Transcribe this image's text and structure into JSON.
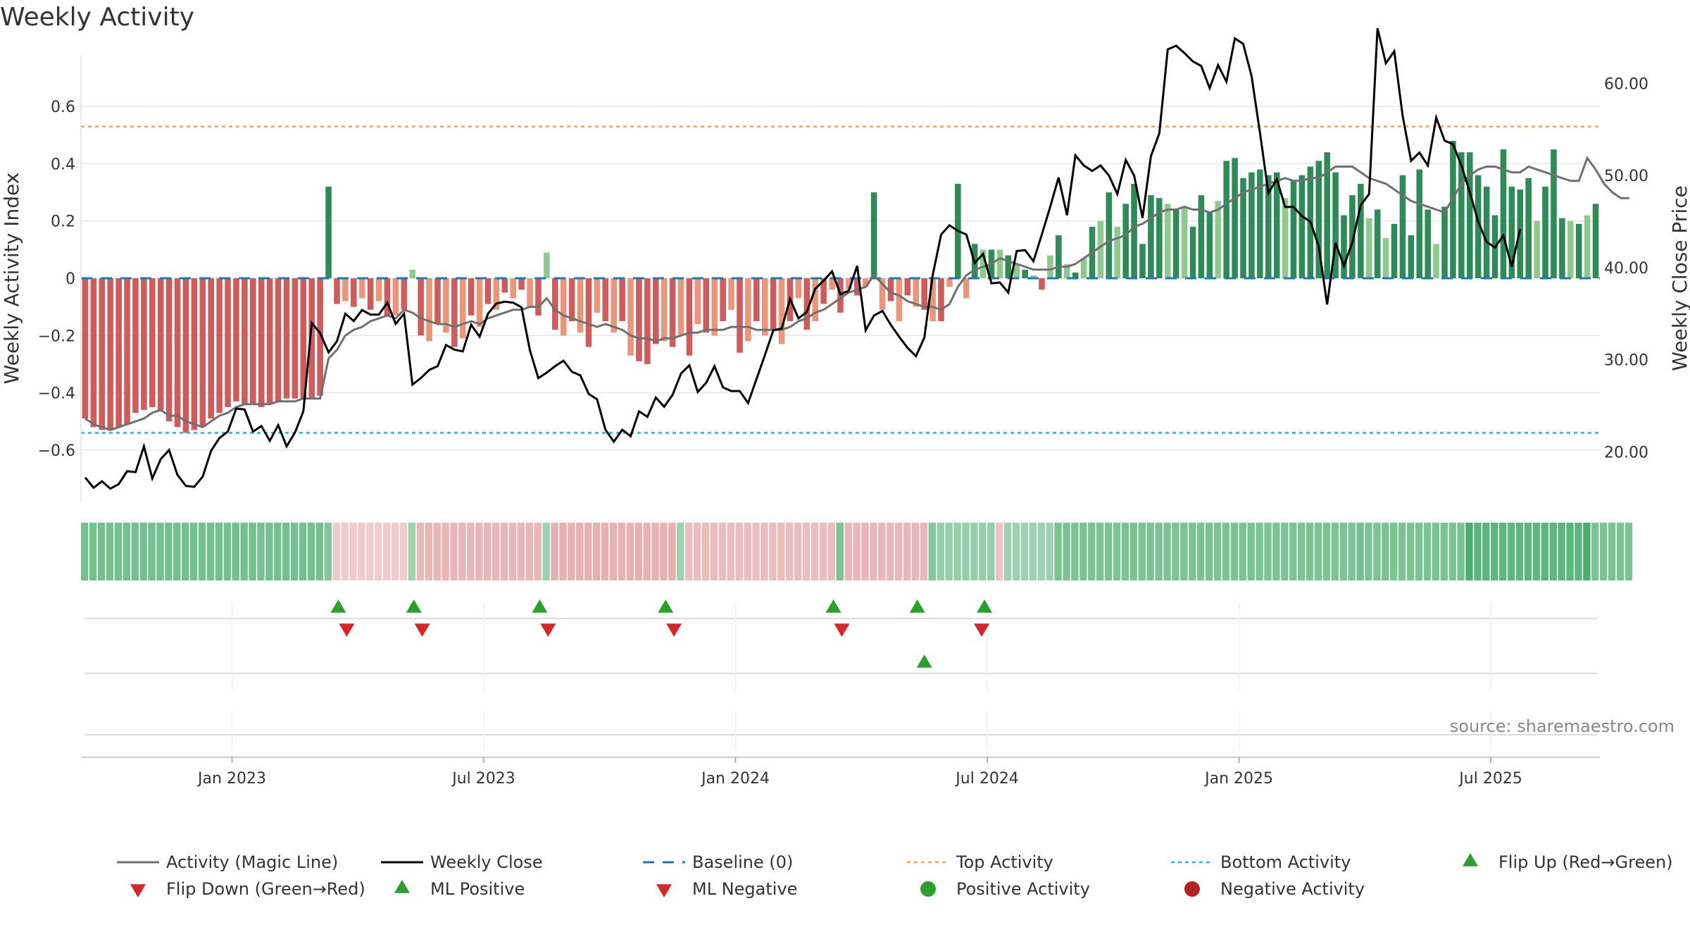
{
  "title": "Weekly Activity",
  "chart_data": {
    "type": "bar+line",
    "title": "Weekly Activity",
    "ylabel_left": "Weekly Activity Index",
    "ylabel_right": "Weekly Close Price",
    "source": "source: sharemaestro.com",
    "y_left_ticks": [
      -0.6,
      -0.4,
      -0.2,
      0,
      0.2,
      0.4,
      0.6
    ],
    "y_left_tick_labels": [
      "−0.6",
      "−0.4",
      "−0.2",
      "0",
      "0.2",
      "0.4",
      "0.6"
    ],
    "y_left_range": [
      -0.78,
      0.78
    ],
    "y_right_ticks": [
      20,
      30,
      40,
      50,
      60
    ],
    "y_right_tick_labels": [
      "20.00",
      "30.00",
      "40.00",
      "50.00",
      "60.00"
    ],
    "y_right_range": [
      14.6,
      63.1
    ],
    "x_ticks": [
      "Jan 2023",
      "Jul 2023",
      "Jan 2024",
      "Jul 2024",
      "Jan 2025",
      "Jul 2025"
    ],
    "x_tick_weeks": [
      17.5,
      47.5,
      77.5,
      107.5,
      137.5,
      167.5
    ],
    "top_activity": 0.53,
    "bottom_activity": -0.54,
    "activity": [
      -0.49,
      -0.52,
      -0.53,
      -0.53,
      -0.52,
      -0.51,
      -0.47,
      -0.46,
      -0.45,
      -0.46,
      -0.5,
      -0.52,
      -0.54,
      -0.53,
      -0.52,
      -0.49,
      -0.47,
      -0.45,
      -0.43,
      -0.44,
      -0.44,
      -0.45,
      -0.44,
      -0.43,
      -0.42,
      -0.42,
      -0.42,
      -0.42,
      -0.41,
      0.32,
      -0.09,
      -0.08,
      -0.1,
      -0.07,
      -0.11,
      -0.08,
      -0.13,
      -0.13,
      -0.11,
      0.03,
      -0.2,
      -0.22,
      -0.16,
      -0.19,
      -0.24,
      -0.21,
      -0.13,
      -0.17,
      -0.09,
      -0.11,
      -0.05,
      -0.07,
      -0.04,
      -0.1,
      -0.13,
      0.09,
      -0.18,
      -0.2,
      -0.15,
      -0.19,
      -0.24,
      -0.12,
      -0.15,
      -0.19,
      -0.15,
      -0.27,
      -0.29,
      -0.3,
      -0.23,
      -0.22,
      -0.24,
      -0.2,
      -0.27,
      -0.16,
      -0.19,
      -0.2,
      -0.15,
      -0.11,
      -0.26,
      -0.22,
      -0.15,
      -0.2,
      -0.18,
      -0.23,
      -0.15,
      -0.07,
      -0.18,
      -0.15,
      -0.09,
      -0.04,
      -0.12,
      -0.04,
      -0.06,
      -0.03,
      0.3,
      -0.11,
      -0.08,
      -0.15,
      -0.06,
      -0.1,
      -0.11,
      -0.15,
      -0.15,
      -0.03,
      0.33,
      -0.07,
      0.12,
      0.1,
      0.1,
      0.1,
      0.08,
      0.05,
      0.03,
      0.01,
      -0.04,
      0.08,
      0.15,
      0.05,
      0.02,
      0.07,
      0.18,
      0.2,
      0.3,
      0.18,
      0.26,
      0.33,
      0.12,
      0.29,
      0.28,
      0.26,
      0.24,
      0.25,
      0.18,
      0.29,
      0.23,
      0.27,
      0.41,
      0.42,
      0.35,
      0.37,
      0.38,
      0.36,
      0.37,
      0.28,
      0.34,
      0.36,
      0.39,
      0.41,
      0.44,
      0.37,
      0.22,
      0.29,
      0.33,
      0.21,
      0.24,
      0.14,
      0.19,
      0.36,
      0.15,
      0.38,
      0.24,
      0.12,
      0.25,
      0.48,
      0.44,
      0.44,
      0.36,
      0.32,
      0.22,
      0.45,
      0.32,
      0.31,
      0.35,
      0.2,
      0.32,
      0.45,
      0.21,
      0.2,
      0.19,
      0.22,
      0.26
    ],
    "magic_line": [
      -0.49,
      -0.51,
      -0.52,
      -0.53,
      -0.52,
      -0.51,
      -0.5,
      -0.49,
      -0.47,
      -0.46,
      -0.48,
      -0.48,
      -0.5,
      -0.51,
      -0.52,
      -0.5,
      -0.48,
      -0.47,
      -0.45,
      -0.44,
      -0.44,
      -0.44,
      -0.44,
      -0.43,
      -0.43,
      -0.43,
      -0.42,
      -0.42,
      -0.42,
      -0.28,
      -0.25,
      -0.2,
      -0.18,
      -0.17,
      -0.15,
      -0.14,
      -0.13,
      -0.14,
      -0.11,
      -0.12,
      -0.14,
      -0.15,
      -0.16,
      -0.16,
      -0.17,
      -0.16,
      -0.15,
      -0.16,
      -0.14,
      -0.13,
      -0.12,
      -0.11,
      -0.11,
      -0.1,
      -0.1,
      -0.07,
      -0.11,
      -0.13,
      -0.14,
      -0.15,
      -0.16,
      -0.17,
      -0.16,
      -0.17,
      -0.18,
      -0.2,
      -0.21,
      -0.21,
      -0.22,
      -0.21,
      -0.21,
      -0.2,
      -0.19,
      -0.19,
      -0.18,
      -0.18,
      -0.18,
      -0.17,
      -0.17,
      -0.17,
      -0.18,
      -0.18,
      -0.18,
      -0.18,
      -0.17,
      -0.15,
      -0.14,
      -0.12,
      -0.11,
      -0.09,
      -0.07,
      -0.05,
      -0.04,
      -0.03,
      0.01,
      -0.02,
      -0.05,
      -0.06,
      -0.08,
      -0.09,
      -0.1,
      -0.1,
      -0.11,
      -0.09,
      -0.03,
      0.01,
      0.03,
      0.04,
      0.05,
      0.07,
      0.06,
      0.05,
      0.04,
      0.03,
      0.03,
      0.03,
      0.04,
      0.04,
      0.05,
      0.07,
      0.09,
      0.11,
      0.13,
      0.14,
      0.15,
      0.18,
      0.19,
      0.21,
      0.23,
      0.24,
      0.24,
      0.25,
      0.24,
      0.24,
      0.23,
      0.24,
      0.26,
      0.28,
      0.3,
      0.31,
      0.32,
      0.33,
      0.34,
      0.35,
      0.34,
      0.34,
      0.35,
      0.35,
      0.37,
      0.39,
      0.39,
      0.39,
      0.37,
      0.35,
      0.34,
      0.33,
      0.31,
      0.29,
      0.27,
      0.26,
      0.25,
      0.24,
      0.23,
      0.28,
      0.33,
      0.36,
      0.38,
      0.39,
      0.39,
      0.38,
      0.37,
      0.37,
      0.39,
      0.38,
      0.37,
      0.36,
      0.35,
      0.34,
      0.34,
      0.42,
      0.38,
      0.33,
      0.3,
      0.28,
      0.28
    ],
    "weekly_close": [
      17.2,
      16.1,
      16.8,
      16.0,
      16.5,
      17.9,
      17.8,
      20.6,
      17.1,
      19.2,
      20.2,
      17.5,
      16.3,
      16.2,
      17.3,
      20.1,
      21.5,
      22.2,
      24.7,
      24.6,
      22.2,
      22.8,
      21.2,
      22.9,
      20.6,
      22.1,
      24.4,
      34.0,
      32.9,
      30.8,
      32.0,
      35.0,
      34.2,
      35.4,
      34.9,
      34.9,
      36.2,
      33.9,
      35.0,
      27.3,
      28.0,
      28.9,
      29.3,
      31.6,
      31.1,
      30.9,
      33.8,
      32.5,
      35.0,
      36.1,
      36.3,
      36.2,
      35.7,
      31.0,
      28.0,
      28.6,
      29.3,
      29.9,
      28.7,
      28.3,
      26.3,
      25.7,
      22.4,
      21.1,
      22.4,
      21.7,
      24.4,
      23.8,
      25.9,
      24.9,
      26.2,
      28.5,
      29.4,
      26.5,
      27.5,
      29.3,
      27.0,
      26.6,
      26.6,
      25.3,
      27.9,
      30.5,
      33.2,
      33.4,
      36.6,
      34.5,
      35.2,
      37.7,
      38.6,
      39.6,
      37.1,
      37.5,
      40.2,
      33.2,
      34.8,
      35.3,
      33.8,
      32.5,
      31.3,
      30.4,
      32.4,
      39.2,
      43.6,
      44.6,
      44.0,
      43.6,
      40.5,
      41.5,
      38.3,
      38.4,
      37.3,
      41.8,
      41.9,
      40.7,
      43.6,
      46.6,
      49.8,
      45.7,
      52.2,
      51.1,
      50.5,
      51.1,
      50.0,
      48.0,
      51.7,
      50.0,
      45.4,
      52.1,
      54.6,
      63.7,
      64.1,
      63.3,
      62.4,
      61.9,
      59.5,
      62.0,
      60.2,
      64.9,
      64.3,
      60.8,
      54.6,
      48.1,
      49.6,
      46.6,
      46.6,
      45.6,
      45.0,
      42.3,
      36.0,
      42.7,
      40.2,
      42.7,
      46.8,
      48.0,
      66.0,
      62.2,
      63.5,
      56.5,
      51.6,
      52.5,
      51.1,
      56.3,
      53.8,
      53.4,
      51.1,
      48.2,
      45.0,
      42.8,
      42.2,
      43.5,
      40.1,
      44.2
    ],
    "intensity_strip": [
      0.55,
      0.55,
      0.55,
      0.55,
      0.55,
      0.55,
      0.55,
      0.55,
      0.55,
      0.55,
      0.55,
      0.55,
      0.55,
      0.55,
      0.55,
      0.55,
      0.55,
      0.55,
      0.55,
      0.55,
      0.55,
      0.55,
      0.55,
      0.55,
      0.55,
      0.55,
      0.55,
      0.55,
      0.55,
      0.45,
      -0.15,
      -0.15,
      -0.15,
      -0.15,
      -0.15,
      -0.15,
      -0.15,
      -0.15,
      -0.15,
      0.3,
      -0.3,
      -0.3,
      -0.3,
      -0.3,
      -0.3,
      -0.3,
      -0.3,
      -0.3,
      -0.3,
      -0.3,
      -0.3,
      -0.3,
      -0.3,
      -0.3,
      -0.3,
      0.3,
      -0.35,
      -0.35,
      -0.35,
      -0.35,
      -0.35,
      -0.35,
      -0.35,
      -0.35,
      -0.35,
      -0.35,
      -0.35,
      -0.35,
      -0.35,
      -0.35,
      -0.35,
      0.3,
      -0.25,
      -0.25,
      -0.25,
      -0.25,
      -0.25,
      -0.25,
      -0.25,
      -0.25,
      -0.25,
      -0.25,
      -0.25,
      -0.25,
      -0.25,
      -0.25,
      -0.25,
      -0.25,
      -0.25,
      -0.25,
      0.5,
      -0.3,
      -0.3,
      -0.3,
      -0.3,
      -0.3,
      -0.3,
      -0.3,
      -0.3,
      -0.3,
      -0.3,
      0.45,
      0.35,
      0.35,
      0.35,
      0.35,
      0.35,
      0.35,
      0.35,
      -0.2,
      0.3,
      0.3,
      0.3,
      0.3,
      0.3,
      0.3,
      0.5,
      0.5,
      0.5,
      0.5,
      0.5,
      0.5,
      0.5,
      0.5,
      0.5,
      0.5,
      0.5,
      0.5,
      0.5,
      0.5,
      0.5,
      0.5,
      0.5,
      0.5,
      0.5,
      0.5,
      0.5,
      0.5,
      0.5,
      0.5,
      0.5,
      0.5,
      0.5,
      0.5,
      0.5,
      0.5,
      0.5,
      0.5,
      0.5,
      0.5,
      0.5,
      0.5,
      0.55,
      0.5,
      0.5,
      0.5,
      0.5,
      0.5,
      0.5,
      0.5,
      0.5,
      0.5,
      0.5,
      0.5,
      0.5,
      0.8,
      0.7,
      0.7,
      0.7,
      0.7,
      0.7,
      0.7,
      0.7,
      0.7,
      0.7,
      0.7,
      0.7,
      0.7,
      0.7,
      0.8,
      0.5,
      0.5,
      0.5,
      0.5,
      0.5
    ],
    "flip_up_weeks": [
      30,
      39,
      54,
      69,
      89,
      99,
      107
    ],
    "flip_down_weeks": [
      31,
      40,
      55,
      70,
      90,
      107
    ],
    "ml_positive_weeks": [
      100
    ],
    "ml_negative_weeks": [],
    "positive_activity_weeks": [],
    "negative_activity_weeks": [],
    "colors": {
      "neg_strong": "#cd5c5c",
      "neg_light": "#e9967a",
      "pos_strong": "#2e8b57",
      "pos_light": "#8fc98f",
      "magic_line": "#707070",
      "close_line": "#000000",
      "baseline": "#1f77b4",
      "top_activity": "#f4a460",
      "bottom_activity": "#17becf",
      "flip_up": "#2ca02c",
      "flip_down": "#d62728",
      "positive_dot": "#2ca02c",
      "negative_dot": "#b22222",
      "grid": "#e6e6e6"
    },
    "legend": [
      {
        "label": "Activity (Magic Line)",
        "kind": "line",
        "color": "#707070"
      },
      {
        "label": "Weekly Close",
        "kind": "line",
        "color": "#000000"
      },
      {
        "label": "Baseline (0)",
        "kind": "dash",
        "color": "#1f77b4"
      },
      {
        "label": "Top Activity",
        "kind": "dot",
        "color": "#f4a460"
      },
      {
        "label": "Bottom Activity",
        "kind": "dot",
        "color": "#17becf"
      },
      {
        "label": "Flip Up (Red→Green)",
        "kind": "tri-up",
        "color": "#2ca02c"
      },
      {
        "label": "Flip Down (Green→Red)",
        "kind": "tri-down",
        "color": "#d62728"
      },
      {
        "label": "ML Positive",
        "kind": "tri-up",
        "color": "#2ca02c"
      },
      {
        "label": "ML Negative",
        "kind": "tri-down",
        "color": "#d62728"
      },
      {
        "label": "Positive Activity",
        "kind": "circle",
        "color": "#2ca02c"
      },
      {
        "label": "Negative Activity",
        "kind": "circle",
        "color": "#b22222"
      }
    ]
  }
}
